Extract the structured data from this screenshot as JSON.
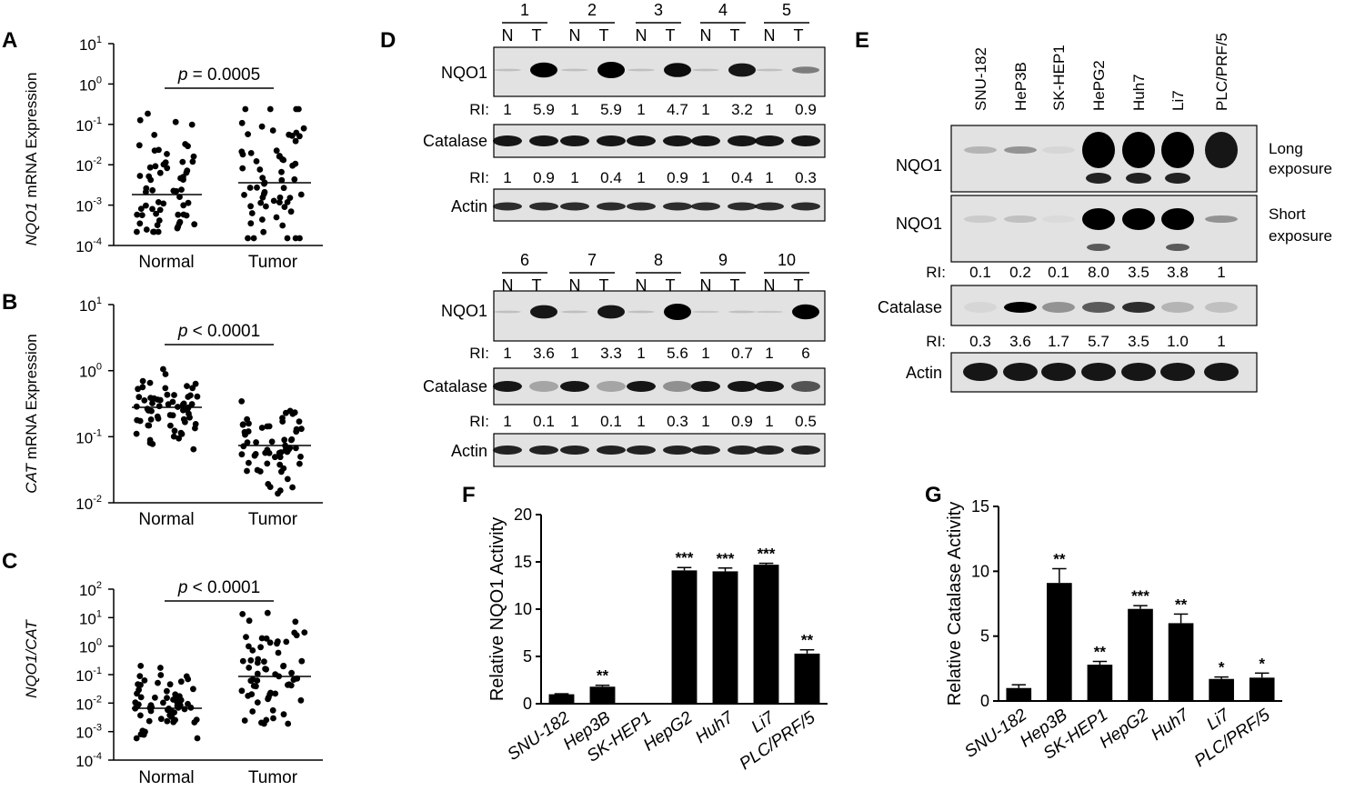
{
  "panels": {
    "A": {
      "letter": "A",
      "ylabel_italic": "NQO1",
      "ylabel_rest": " mRNA Expression",
      "pvalue_p": "p",
      "pvalue_rest": " = 0.0005",
      "groups": [
        "Normal",
        "Tumor"
      ],
      "ticks": [
        {
          "base": "10",
          "exp": "1"
        },
        {
          "base": "10",
          "exp": "0"
        },
        {
          "base": "10",
          "exp": "-1"
        },
        {
          "base": "10",
          "exp": "-2"
        },
        {
          "base": "10",
          "exp": "-3"
        },
        {
          "base": "10",
          "exp": "-4"
        }
      ]
    },
    "B": {
      "letter": "B",
      "ylabel_italic": "CAT",
      "ylabel_rest": " mRNA Expression",
      "pvalue_p": "p",
      "pvalue_rest": " < 0.0001",
      "groups": [
        "Normal",
        "Tumor"
      ],
      "ticks": [
        {
          "base": "10",
          "exp": "1"
        },
        {
          "base": "10",
          "exp": "0"
        },
        {
          "base": "10",
          "exp": "-1"
        },
        {
          "base": "10",
          "exp": "-2"
        }
      ]
    },
    "C": {
      "letter": "C",
      "ylabel_italic": "NQO1/CAT",
      "ylabel_rest": "",
      "pvalue_p": "p",
      "pvalue_rest": " < 0.0001",
      "groups": [
        "Normal",
        "Tumor"
      ],
      "ticks": [
        {
          "base": "10",
          "exp": "2"
        },
        {
          "base": "10",
          "exp": "1"
        },
        {
          "base": "10",
          "exp": "0"
        },
        {
          "base": "10",
          "exp": "-1"
        },
        {
          "base": "10",
          "exp": "-2"
        },
        {
          "base": "10",
          "exp": "-3"
        },
        {
          "base": "10",
          "exp": "-4"
        }
      ]
    },
    "D": {
      "letter": "D",
      "top": {
        "pairs": [
          "1",
          "2",
          "3",
          "4",
          "5"
        ],
        "nt": [
          "N",
          "T"
        ],
        "rows": [
          "NQO1",
          "Catalase",
          "Actin"
        ],
        "ri_label": "RI:",
        "ri_nqo1": [
          "1",
          "5.9",
          "1",
          "5.9",
          "1",
          "4.7",
          "1",
          "3.2",
          "1",
          "0.9"
        ],
        "ri_catalase": [
          "1",
          "0.9",
          "1",
          "0.4",
          "1",
          "0.9",
          "1",
          "0.4",
          "1",
          "0.3"
        ]
      },
      "bottom": {
        "pairs": [
          "6",
          "7",
          "8",
          "9",
          "10"
        ],
        "nt": [
          "N",
          "T"
        ],
        "rows": [
          "NQO1",
          "Catalase",
          "Actin"
        ],
        "ri_label": "RI:",
        "ri_nqo1": [
          "1",
          "3.6",
          "1",
          "3.3",
          "1",
          "5.6",
          "1",
          "0.7",
          "1",
          "6"
        ],
        "ri_catalase": [
          "1",
          "0.1",
          "1",
          "0.1",
          "1",
          "0.3",
          "1",
          "0.9",
          "1",
          "0.5"
        ]
      }
    },
    "E": {
      "letter": "E",
      "lanes": [
        "SNU-182",
        "HeP3B",
        "SK-HEP1",
        "HePG2",
        "Huh7",
        "Li7",
        "PLC/PRF/5"
      ],
      "rows": [
        "NQO1",
        "NQO1",
        "Catalase",
        "Actin"
      ],
      "long_exposure": [
        "Long",
        "exposure"
      ],
      "short_exposure": [
        "Short",
        "exposure"
      ],
      "ri_label": "RI:",
      "ri_nqo1": [
        "0.1",
        "0.2",
        "0.1",
        "8.0",
        "3.5",
        "3.8",
        "1"
      ],
      "ri_catalase": [
        "0.3",
        "3.6",
        "1.7",
        "5.7",
        "3.5",
        "1.0",
        "1"
      ]
    },
    "F": {
      "letter": "F"
    },
    "G": {
      "letter": "G"
    }
  },
  "chart_data": [
    {
      "panel": "F",
      "type": "bar",
      "ylabel": "Relative NQO1 Activity",
      "categories": [
        "SNU-182",
        "Hep3B",
        "SK-HEP1",
        "HepG2",
        "Huh7",
        "Li7",
        "PLC/PRF/5"
      ],
      "values": [
        1.0,
        1.8,
        0,
        14.1,
        14.0,
        14.7,
        5.3
      ],
      "errors": [
        0.05,
        0.15,
        0,
        0.3,
        0.35,
        0.15,
        0.4
      ],
      "significance": [
        "",
        "**",
        "",
        "***",
        "***",
        "***",
        "**"
      ],
      "ylim": [
        0,
        20
      ],
      "yticks": [
        "0",
        "5",
        "10",
        "15",
        "20"
      ]
    },
    {
      "panel": "G",
      "type": "bar",
      "ylabel": "Relative Catalase Activity",
      "categories": [
        "SNU-182",
        "Hep3B",
        "SK-HEP1",
        "HepG2",
        "Huh7",
        "Li7",
        "PLC/PRF/5"
      ],
      "values": [
        1.0,
        9.1,
        2.8,
        7.1,
        6.0,
        1.7,
        1.8
      ],
      "errors": [
        0.25,
        1.1,
        0.25,
        0.25,
        0.7,
        0.15,
        0.35
      ],
      "significance": [
        "",
        "**",
        "**",
        "***",
        "**",
        "*",
        "*"
      ],
      "ylim": [
        0,
        15
      ],
      "yticks": [
        "0",
        "5",
        "10",
        "15"
      ]
    }
  ]
}
